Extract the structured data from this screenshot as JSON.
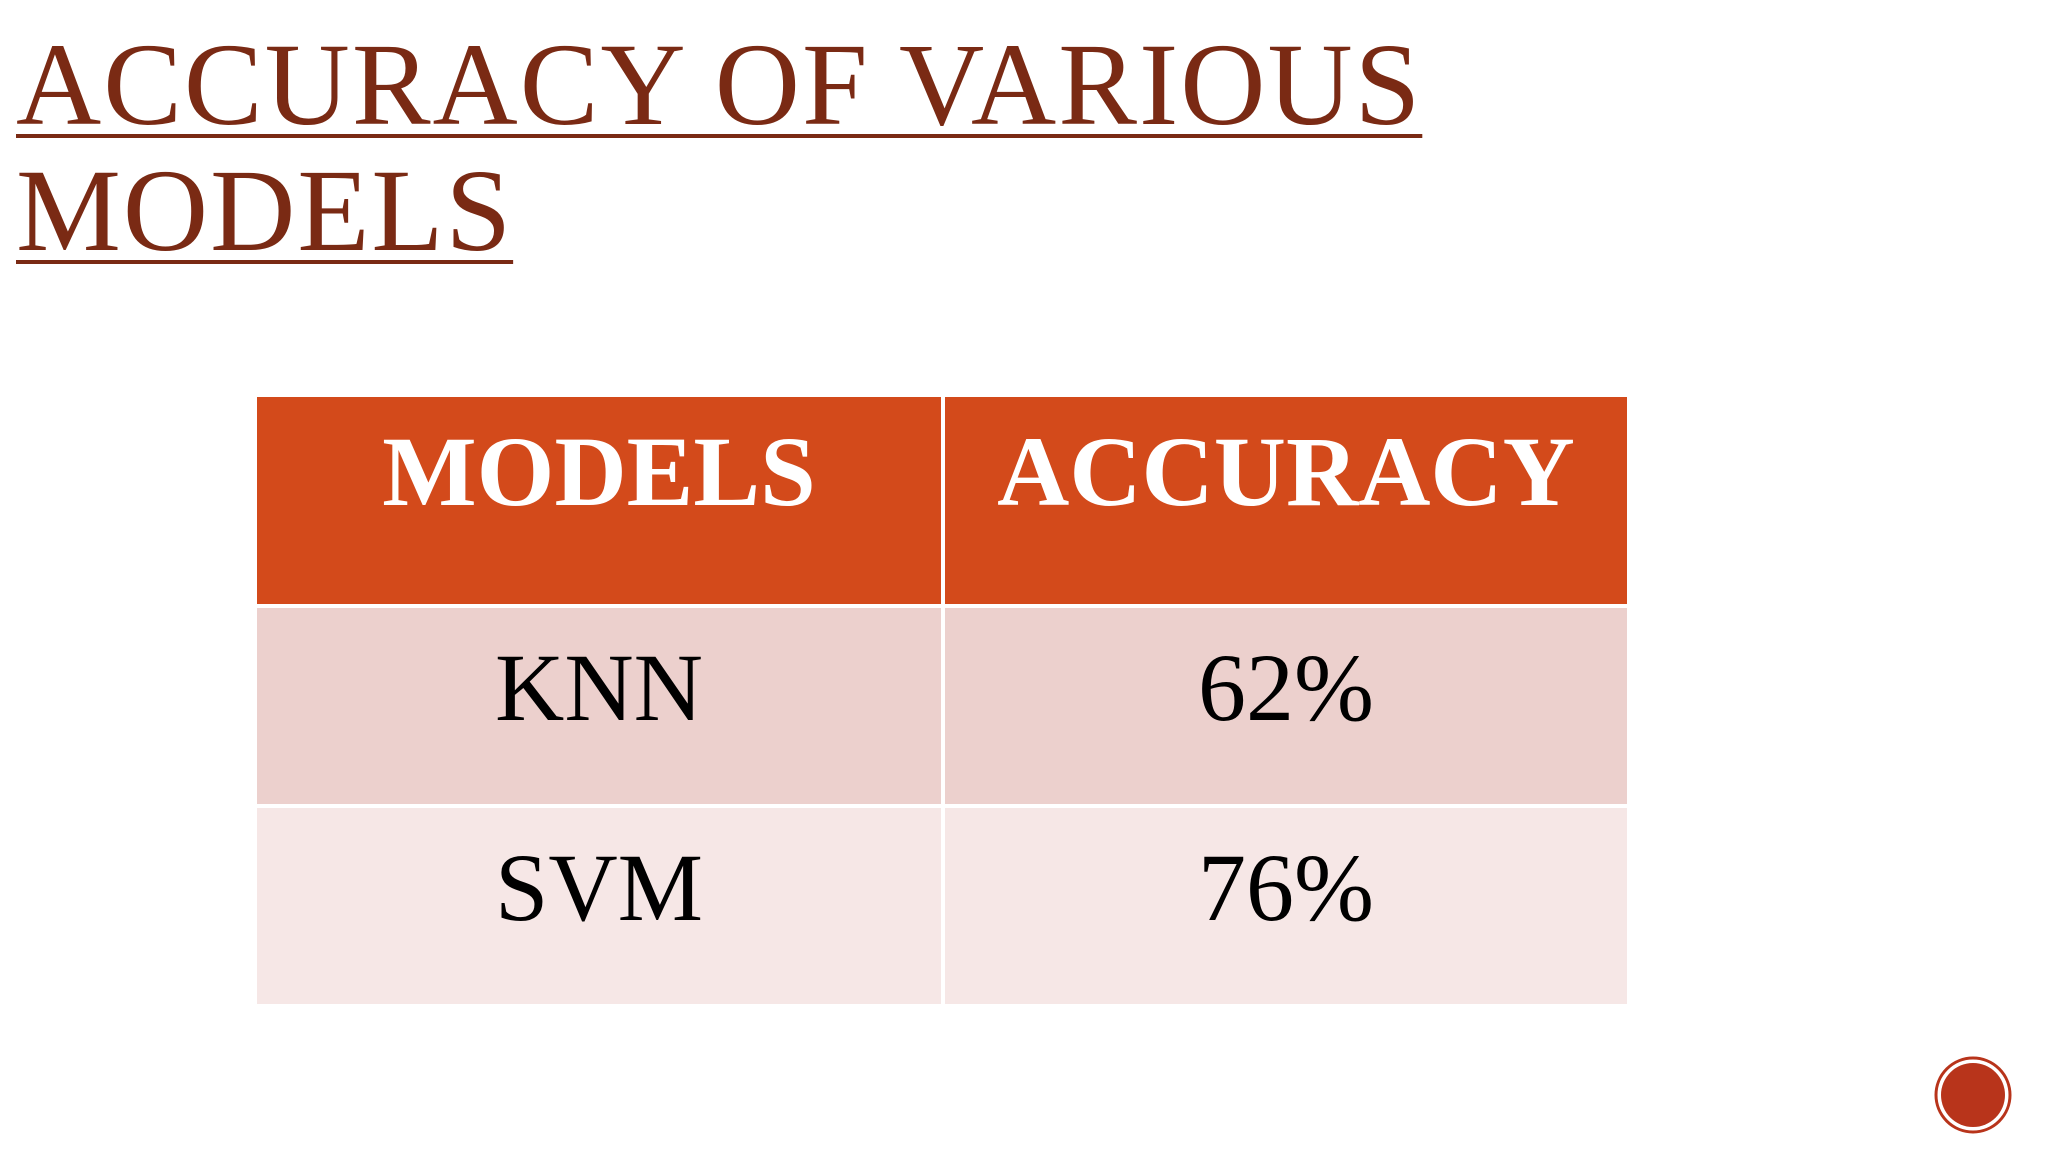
{
  "title": "ACCURACY OF VARIOUS MODELS",
  "table": {
    "header": [
      "MODELS",
      "ACCURACY"
    ],
    "rows": [
      [
        "KNN",
        "62%"
      ],
      [
        "SVM",
        "76%"
      ]
    ]
  }
}
